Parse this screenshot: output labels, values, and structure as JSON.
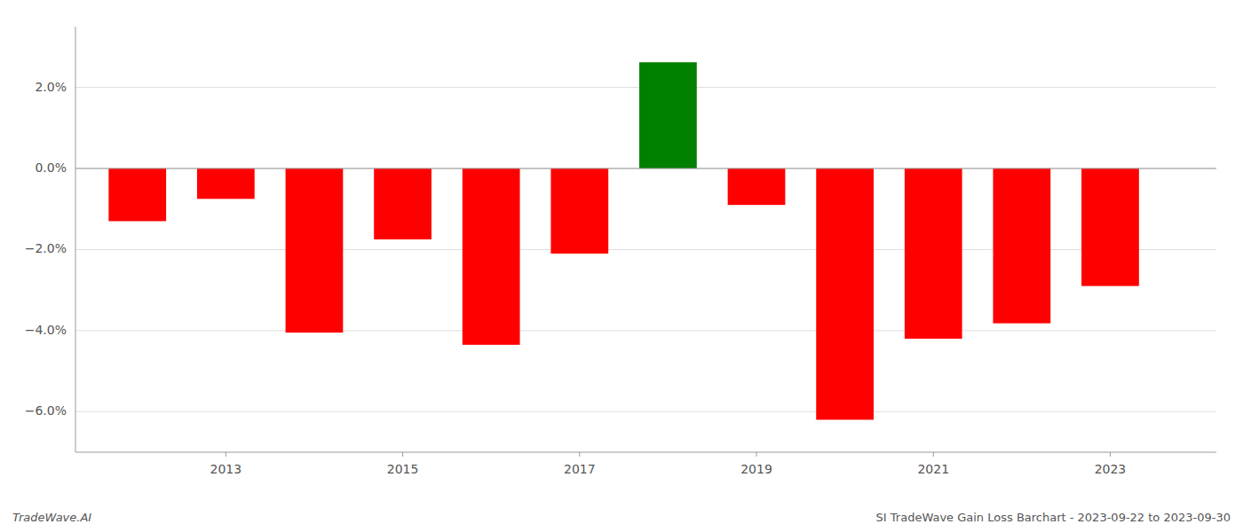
{
  "chart_data": {
    "type": "bar",
    "x": [
      2012,
      2013,
      2014,
      2015,
      2016,
      2017,
      2018,
      2019,
      2020,
      2021,
      2022,
      2023
    ],
    "values": [
      -1.3,
      -0.75,
      -4.05,
      -1.75,
      -4.35,
      -2.1,
      2.62,
      -0.9,
      -6.2,
      -4.2,
      -3.82,
      -2.9
    ],
    "colors": [
      "red",
      "red",
      "red",
      "red",
      "red",
      "red",
      "green",
      "red",
      "red",
      "red",
      "red",
      "red"
    ],
    "xlim": [
      2011.3,
      2024.2
    ],
    "xticks": [
      2013,
      2015,
      2017,
      2019,
      2021,
      2023
    ],
    "ylim": [
      -7.0,
      3.5
    ],
    "yticks": [
      {
        "value": -6.0,
        "label": "−6.0%"
      },
      {
        "value": -4.0,
        "label": "−4.0%"
      },
      {
        "value": -2.0,
        "label": "−2.0%"
      },
      {
        "value": 0.0,
        "label": "0.0%"
      },
      {
        "value": 2.0,
        "label": "2.0%"
      }
    ],
    "grid": true,
    "annotations": [
      "TradeWave.AI",
      "SI TradeWave Gain Loss Barchart - 2023-09-22 to 2023-09-30"
    ]
  }
}
